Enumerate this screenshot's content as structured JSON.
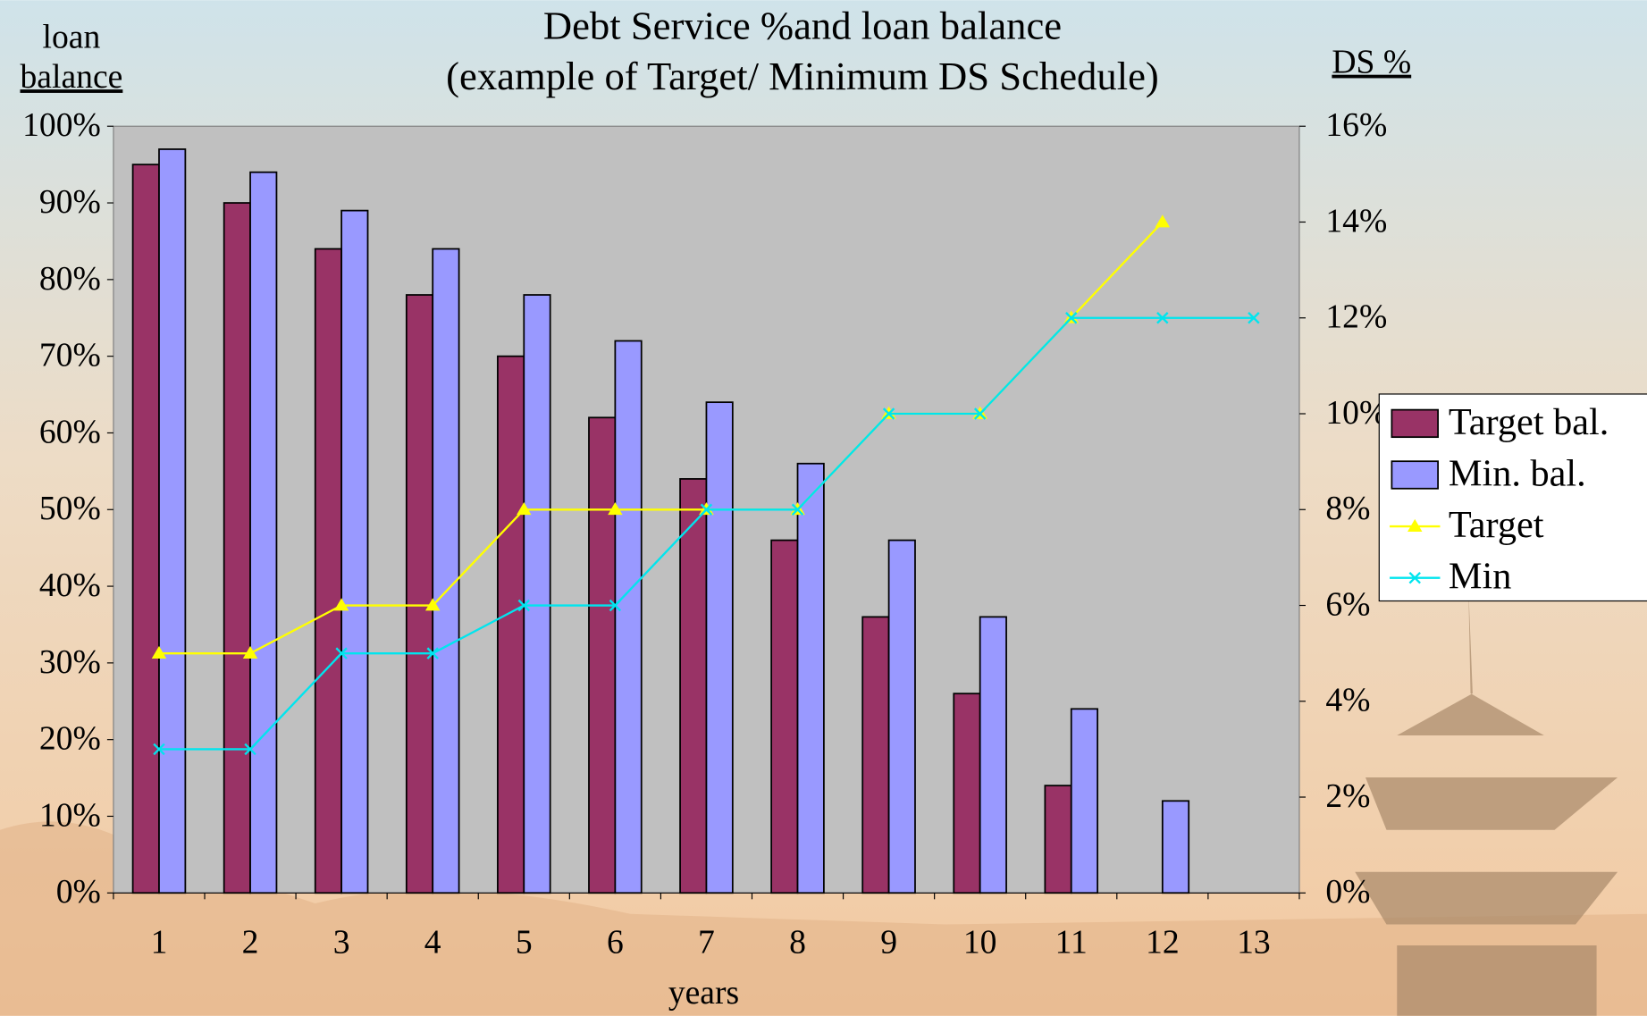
{
  "chart_data": {
    "type": "bar",
    "title": "Debt Service %and loan balance",
    "subtitle": "(example of Target/ Minimum DS Schedule)",
    "ylabel": [
      "loan",
      "balance"
    ],
    "y2label": "DS %",
    "xlabel": "years",
    "categories": [
      "1",
      "2",
      "3",
      "4",
      "5",
      "6",
      "7",
      "8",
      "9",
      "10",
      "11",
      "12",
      "13"
    ],
    "series": [
      {
        "name": "Target bal.",
        "type": "bar",
        "color": "#993366",
        "values": [
          95,
          90,
          84,
          78,
          70,
          62,
          54,
          46,
          36,
          26,
          14,
          null,
          null
        ]
      },
      {
        "name": "Min. bal.",
        "type": "bar",
        "color": "#9999ff",
        "values": [
          97,
          94,
          89,
          84,
          78,
          72,
          64,
          56,
          46,
          36,
          24,
          12,
          null
        ]
      },
      {
        "name": "Target",
        "type": "line",
        "axis": "y2",
        "marker": "triangle",
        "color": "#ffff00",
        "values": [
          5,
          5,
          6,
          6,
          8,
          8,
          8,
          8,
          10,
          10,
          12,
          14,
          null
        ]
      },
      {
        "name": "Min",
        "type": "line",
        "axis": "y2",
        "marker": "x",
        "color": "#00e5ee",
        "values": [
          3,
          3,
          5,
          5,
          6,
          6,
          8,
          8,
          10,
          10,
          12,
          12,
          12
        ]
      }
    ],
    "ylim": [
      0,
      100
    ],
    "yticks": [
      {
        "value": 0,
        "label": "0%"
      },
      {
        "value": 10,
        "label": "10%"
      },
      {
        "value": 20,
        "label": "20%"
      },
      {
        "value": 30,
        "label": "30%"
      },
      {
        "value": 40,
        "label": "40%"
      },
      {
        "value": 50,
        "label": "50%"
      },
      {
        "value": 60,
        "label": "60%"
      },
      {
        "value": 70,
        "label": "70%"
      },
      {
        "value": 80,
        "label": "80%"
      },
      {
        "value": 90,
        "label": "90%"
      },
      {
        "value": 100,
        "label": "100%"
      }
    ],
    "y2lim": [
      0,
      16
    ],
    "y2ticks": [
      {
        "value": 0,
        "label": "0%"
      },
      {
        "value": 2,
        "label": "2%"
      },
      {
        "value": 4,
        "label": "4%"
      },
      {
        "value": 6,
        "label": "6%"
      },
      {
        "value": 8,
        "label": "8%"
      },
      {
        "value": 10,
        "label": "10%"
      },
      {
        "value": 12,
        "label": "12%"
      },
      {
        "value": 14,
        "label": "14%"
      },
      {
        "value": 16,
        "label": "16%"
      }
    ],
    "grid": false,
    "legend": "right"
  }
}
